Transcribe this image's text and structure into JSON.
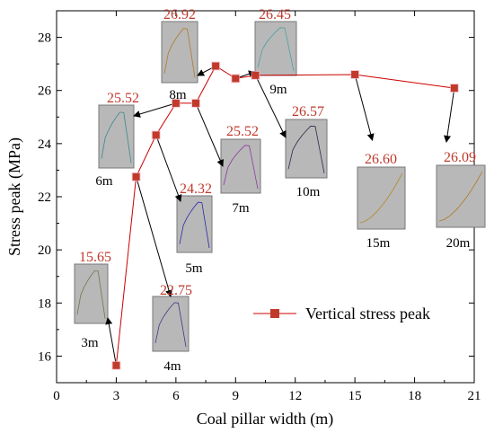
{
  "chart_data": {
    "type": "line",
    "xlabel": "Coal pillar width (m)",
    "ylabel": "Stress peak (MPa)",
    "xlim": [
      0,
      21
    ],
    "ylim": [
      15,
      29
    ],
    "xticks": [
      "0",
      "3",
      "6",
      "9",
      "12",
      "15",
      "18",
      "21"
    ],
    "yticks": [
      "16",
      "18",
      "20",
      "22",
      "24",
      "26",
      "28"
    ],
    "legend_position": "lower-right",
    "series": [
      {
        "name": "Vertical stress peak",
        "color": "#cc0000",
        "marker_color": "#c0392b",
        "x": [
          3,
          4,
          5,
          6,
          7,
          8,
          9,
          10,
          15,
          20
        ],
        "y": [
          15.65,
          22.75,
          24.32,
          25.52,
          25.52,
          26.92,
          26.45,
          26.57,
          26.6,
          26.09
        ]
      }
    ],
    "annotations": [
      {
        "peak": "15.65",
        "width": "3m"
      },
      {
        "peak": "22.75",
        "width": "4m"
      },
      {
        "peak": "24.32",
        "width": "5m"
      },
      {
        "peak": "25.52",
        "width": "6m"
      },
      {
        "peak": "25.52",
        "width": "7m"
      },
      {
        "peak": "26.92",
        "width": "8m"
      },
      {
        "peak": "26.45",
        "width": "9m"
      },
      {
        "peak": "26.57",
        "width": "10m"
      },
      {
        "peak": "26.60",
        "width": "15m"
      },
      {
        "peak": "26.09",
        "width": "20m"
      }
    ]
  }
}
